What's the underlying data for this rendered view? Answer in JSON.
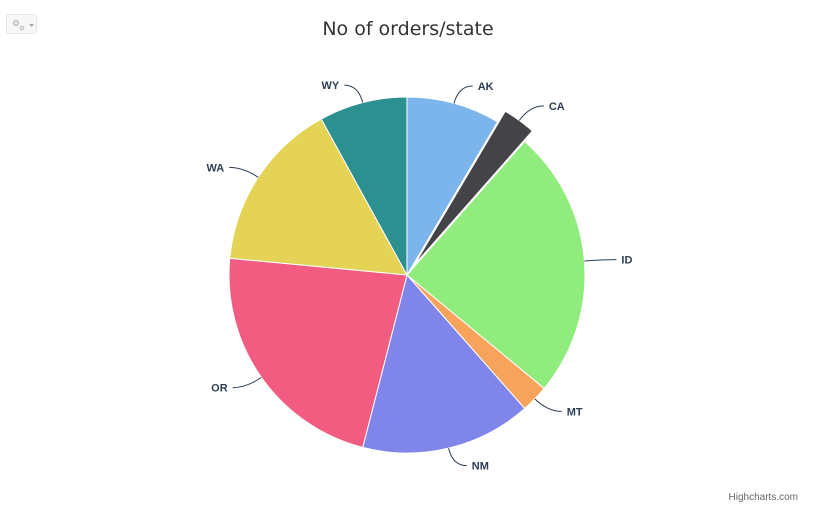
{
  "chart_data": {
    "type": "pie",
    "title": "No of orders/state",
    "credits": "Highcharts.com",
    "sliced_category": "CA",
    "series": [
      {
        "name": "",
        "points": [
          {
            "name": "AK",
            "value": 8.5,
            "color": "#7cb5ec"
          },
          {
            "name": "CA",
            "value": 3.0,
            "color": "#434348"
          },
          {
            "name": "ID",
            "value": 24.5,
            "color": "#90ed7d"
          },
          {
            "name": "MT",
            "value": 2.5,
            "color": "#f7a35c"
          },
          {
            "name": "NM",
            "value": 15.5,
            "color": "#8085e9"
          },
          {
            "name": "OR",
            "value": 22.5,
            "color": "#f15c80"
          },
          {
            "name": "WA",
            "value": 15.5,
            "color": "#e4d354"
          },
          {
            "name": "WY",
            "value": 8.0,
            "color": "#2b908f"
          }
        ]
      }
    ]
  },
  "label_color": "#2d3e55",
  "connector_color": "#2d3e55"
}
